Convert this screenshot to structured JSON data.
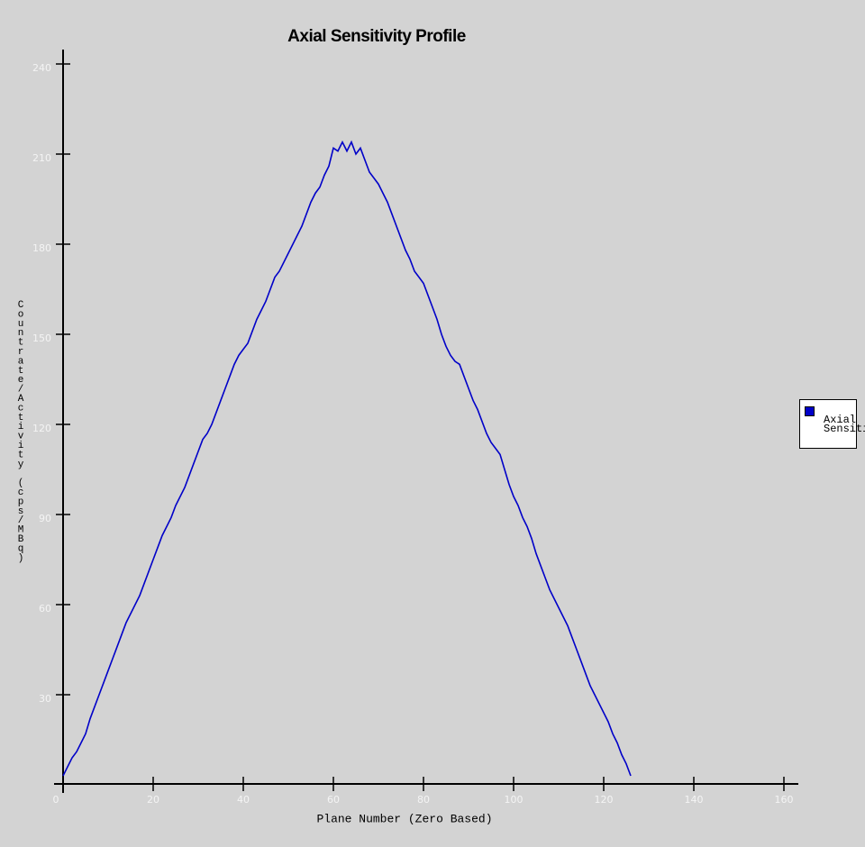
{
  "chart_data": {
    "type": "line",
    "title": "Axial Sensitivity Profile",
    "x_label": "Plane Number (Zero Based)",
    "y_label": "Countrate/Activity (cps/MBq)",
    "x": [
      0,
      1,
      2,
      3,
      4,
      5,
      6,
      7,
      8,
      9,
      10,
      11,
      12,
      13,
      14,
      15,
      16,
      17,
      18,
      19,
      20,
      21,
      22,
      23,
      24,
      25,
      26,
      27,
      28,
      29,
      30,
      31,
      32,
      33,
      34,
      35,
      36,
      37,
      38,
      39,
      40,
      41,
      42,
      43,
      44,
      45,
      46,
      47,
      48,
      49,
      50,
      51,
      52,
      53,
      54,
      55,
      56,
      57,
      58,
      59,
      60,
      61,
      62,
      63,
      64,
      65,
      66,
      67,
      68,
      69,
      70,
      71,
      72,
      73,
      74,
      75,
      76,
      77,
      78,
      79,
      80,
      81,
      82,
      83,
      84,
      85,
      86,
      87,
      88,
      89,
      90,
      91,
      92,
      93,
      94,
      95,
      96,
      97,
      98,
      99,
      100,
      101,
      102,
      103,
      104,
      105,
      106,
      107,
      108,
      109,
      110,
      111,
      112,
      113,
      114,
      115,
      116,
      117,
      118,
      119,
      120,
      121,
      122,
      123,
      124,
      125,
      126
    ],
    "series": [
      {
        "name": "Axial Sensitivity",
        "color": "#0000c8",
        "values": [
          3,
          6,
          9,
          11,
          14,
          17,
          22,
          26,
          30,
          34,
          38,
          42,
          46,
          50,
          54,
          57,
          60,
          63,
          67,
          71,
          75,
          79,
          83,
          86,
          89,
          93,
          96,
          99,
          103,
          107,
          111,
          115,
          117,
          120,
          124,
          128,
          132,
          136,
          140,
          143,
          145,
          147,
          151,
          155,
          158,
          161,
          165,
          169,
          171,
          174,
          177,
          180,
          183,
          186,
          190,
          194,
          197,
          199,
          203,
          206,
          212,
          211,
          214,
          211,
          214,
          210,
          212,
          208,
          204,
          202,
          200,
          197,
          194,
          190,
          186,
          182,
          178,
          175,
          171,
          169,
          167,
          163,
          159,
          155,
          150,
          146,
          143,
          141,
          140,
          136,
          132,
          128,
          125,
          121,
          117,
          114,
          112,
          110,
          105,
          100,
          96,
          93,
          89,
          86,
          82,
          77,
          73,
          69,
          65,
          62,
          59,
          56,
          53,
          49,
          45,
          41,
          37,
          33,
          30,
          27,
          24,
          21,
          17,
          14,
          10,
          7,
          3
        ]
      }
    ],
    "xlim": [
      0,
      163
    ],
    "ylim": [
      0,
      245
    ],
    "xticks": [
      0,
      20,
      40,
      60,
      80,
      100,
      120,
      140,
      160
    ],
    "yticks": [
      30,
      60,
      90,
      120,
      150,
      180,
      210,
      240
    ],
    "grid": false,
    "legend": "right"
  }
}
